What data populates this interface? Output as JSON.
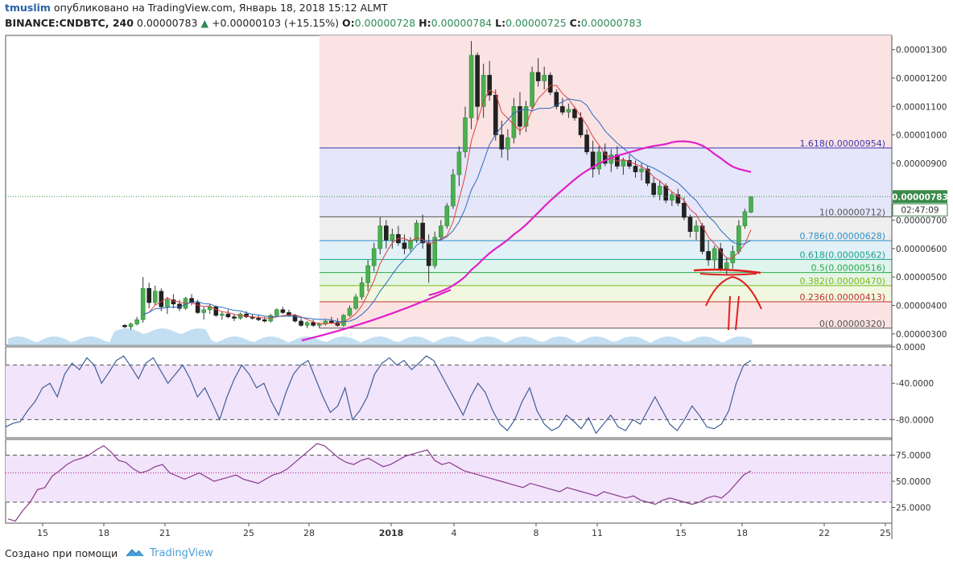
{
  "header": {
    "author": "tmuslim",
    "published_text": "опубликовано на TradingView.com, Январь 18, 2018 15:12 ALMT",
    "symbol": "BINANCE:CNDBTC, 240",
    "last": "0.00000783",
    "change": "+0.00000103 (+15.15%)",
    "open_label": "O:",
    "open": "0.00000728",
    "high_label": "H:",
    "high": "0.00000784",
    "low_label": "L:",
    "low": "0.00000725",
    "close_label": "C:",
    "close": "0.00000783"
  },
  "footer": {
    "created_text": "Создано при помощи",
    "brand": "TradingView"
  },
  "chart_data": [
    {
      "type": "candlestick",
      "panel": "price",
      "y_ticks": [
        "0.00001300",
        "0.00001200",
        "0.00001100",
        "0.00001000",
        "0.00000900",
        "0.00000700",
        "0.00000600",
        "0.00000500",
        "0.00000400",
        "0.00000300"
      ],
      "ylim": [
        2.6e-06,
        1.35e-05
      ],
      "last_price_label": "0.00000783",
      "countdown_label": "02:47:09",
      "fibonacci": [
        {
          "level": "1.618",
          "price": 9.54e-06,
          "label": "1.618(0.00000954)",
          "color": "#3a3ab0"
        },
        {
          "level": "1",
          "price": 7.12e-06,
          "label": "1(0.00000712)",
          "color": "#555555"
        },
        {
          "level": "0.786",
          "price": 6.28e-06,
          "label": "0.786(0.00000628)",
          "color": "#2a90c8"
        },
        {
          "level": "0.618",
          "price": 5.62e-06,
          "label": "0.618(0.00000562)",
          "color": "#1aa38a"
        },
        {
          "level": "0.5",
          "price": 5.16e-06,
          "label": "0.5(0.00000516)",
          "color": "#2aa84a"
        },
        {
          "level": "0.382",
          "price": 4.7e-06,
          "label": "0.382(0.00000470)",
          "color": "#7ab818"
        },
        {
          "level": "0.236",
          "price": 4.13e-06,
          "label": "0.236(0.00000413)",
          "color": "#c03030"
        },
        {
          "level": "0",
          "price": 3.2e-06,
          "label": "0(0.00000320)",
          "color": "#555555"
        }
      ],
      "candles_ohlc": [
        [
          3.3,
          3.35,
          3.2,
          3.25
        ],
        [
          3.25,
          3.4,
          3.15,
          3.35
        ],
        [
          3.35,
          3.6,
          3.3,
          3.5
        ],
        [
          3.5,
          5.0,
          3.4,
          4.6
        ],
        [
          4.6,
          4.8,
          3.9,
          4.1
        ],
        [
          4.1,
          4.7,
          4.0,
          4.5
        ],
        [
          4.5,
          4.6,
          3.8,
          3.95
        ],
        [
          3.95,
          4.3,
          3.7,
          4.2
        ],
        [
          4.2,
          4.4,
          3.9,
          4.05
        ],
        [
          4.05,
          4.2,
          3.8,
          3.9
        ],
        [
          3.9,
          4.3,
          3.85,
          4.25
        ],
        [
          4.25,
          4.4,
          4.0,
          4.1
        ],
        [
          4.1,
          4.2,
          3.7,
          3.75
        ],
        [
          3.75,
          3.95,
          3.5,
          3.85
        ],
        [
          3.85,
          4.05,
          3.7,
          3.95
        ],
        [
          3.95,
          4.0,
          3.6,
          3.65
        ],
        [
          3.65,
          3.8,
          3.5,
          3.7
        ],
        [
          3.7,
          3.85,
          3.55,
          3.6
        ],
        [
          3.6,
          3.7,
          3.45,
          3.55
        ],
        [
          3.55,
          3.75,
          3.5,
          3.7
        ],
        [
          3.7,
          3.8,
          3.55,
          3.6
        ],
        [
          3.6,
          3.7,
          3.5,
          3.55
        ],
        [
          3.55,
          3.65,
          3.45,
          3.5
        ],
        [
          3.5,
          3.6,
          3.4,
          3.45
        ],
        [
          3.45,
          3.7,
          3.4,
          3.65
        ],
        [
          3.65,
          3.9,
          3.6,
          3.85
        ],
        [
          3.85,
          3.95,
          3.7,
          3.75
        ],
        [
          3.75,
          3.85,
          3.6,
          3.65
        ],
        [
          3.65,
          3.7,
          3.4,
          3.45
        ],
        [
          3.45,
          3.55,
          3.25,
          3.3
        ],
        [
          3.3,
          3.45,
          3.2,
          3.4
        ],
        [
          3.4,
          3.5,
          3.25,
          3.3
        ],
        [
          3.3,
          3.4,
          3.2,
          3.35
        ],
        [
          3.35,
          3.5,
          3.3,
          3.45
        ],
        [
          3.45,
          3.6,
          3.35,
          3.4
        ],
        [
          3.4,
          3.55,
          3.25,
          3.3
        ],
        [
          3.3,
          3.7,
          3.25,
          3.65
        ],
        [
          3.65,
          4.0,
          3.6,
          3.9
        ],
        [
          3.9,
          4.4,
          3.85,
          4.3
        ],
        [
          4.3,
          5.0,
          4.2,
          4.8
        ],
        [
          4.8,
          5.6,
          4.5,
          5.4
        ],
        [
          5.4,
          6.2,
          5.2,
          6.0
        ],
        [
          6.0,
          7.1,
          5.8,
          6.8
        ],
        [
          6.8,
          7.0,
          6.0,
          6.3
        ],
        [
          6.3,
          6.7,
          6.0,
          6.5
        ],
        [
          6.5,
          6.8,
          6.1,
          6.2
        ],
        [
          6.2,
          6.5,
          5.8,
          6.0
        ],
        [
          6.0,
          6.4,
          5.9,
          6.3
        ],
        [
          6.3,
          7.0,
          6.2,
          6.9
        ],
        [
          6.9,
          7.2,
          6.0,
          6.2
        ],
        [
          6.2,
          6.5,
          4.8,
          5.4
        ],
        [
          5.4,
          6.6,
          5.3,
          6.4
        ],
        [
          6.4,
          7.0,
          6.3,
          6.8
        ],
        [
          6.8,
          7.6,
          6.7,
          7.5
        ],
        [
          7.5,
          8.8,
          7.4,
          8.6
        ],
        [
          8.6,
          9.6,
          8.2,
          9.4
        ],
        [
          9.4,
          11.0,
          9.2,
          10.6
        ],
        [
          10.6,
          13.3,
          10.2,
          12.8
        ],
        [
          12.8,
          12.9,
          10.5,
          11.0
        ],
        [
          11.0,
          12.5,
          10.6,
          12.1
        ],
        [
          12.1,
          12.6,
          11.2,
          11.4
        ],
        [
          11.4,
          11.6,
          9.8,
          10.0
        ],
        [
          10.0,
          10.5,
          9.2,
          9.5
        ],
        [
          9.5,
          10.2,
          9.1,
          9.9
        ],
        [
          9.9,
          11.3,
          9.7,
          11.0
        ],
        [
          11.0,
          11.5,
          10.0,
          10.3
        ],
        [
          10.3,
          11.2,
          10.1,
          11.0
        ],
        [
          11.0,
          12.4,
          10.9,
          12.2
        ],
        [
          12.2,
          12.7,
          11.7,
          11.9
        ],
        [
          11.9,
          12.4,
          11.6,
          12.1
        ],
        [
          12.1,
          12.2,
          11.4,
          11.5
        ],
        [
          11.5,
          11.6,
          10.9,
          11.0
        ],
        [
          11.0,
          11.3,
          10.7,
          10.8
        ],
        [
          10.8,
          11.1,
          10.6,
          10.9
        ],
        [
          10.9,
          11.0,
          10.5,
          10.6
        ],
        [
          10.6,
          10.8,
          9.9,
          10.0
        ],
        [
          10.0,
          10.2,
          9.3,
          9.4
        ],
        [
          9.4,
          9.8,
          8.5,
          8.8
        ],
        [
          8.8,
          9.6,
          8.6,
          9.4
        ],
        [
          9.4,
          9.7,
          8.9,
          9.0
        ],
        [
          9.0,
          9.5,
          8.7,
          9.3
        ],
        [
          9.3,
          9.6,
          8.8,
          8.9
        ],
        [
          8.9,
          9.2,
          8.6,
          9.1
        ],
        [
          9.1,
          9.3,
          8.8,
          8.9
        ],
        [
          8.9,
          9.1,
          8.5,
          8.7
        ],
        [
          8.7,
          9.0,
          8.4,
          8.8
        ],
        [
          8.8,
          8.9,
          8.2,
          8.3
        ],
        [
          8.3,
          8.5,
          7.8,
          7.9
        ],
        [
          7.9,
          8.4,
          7.7,
          8.2
        ],
        [
          8.2,
          8.3,
          7.6,
          7.7
        ],
        [
          7.7,
          8.0,
          7.5,
          7.9
        ],
        [
          7.9,
          8.1,
          7.5,
          7.6
        ],
        [
          7.6,
          7.8,
          7.0,
          7.1
        ],
        [
          7.1,
          7.2,
          6.4,
          6.6
        ],
        [
          6.6,
          7.0,
          6.3,
          6.8
        ],
        [
          6.8,
          6.9,
          5.8,
          5.9
        ],
        [
          5.9,
          6.3,
          5.4,
          5.6
        ],
        [
          5.6,
          6.1,
          5.3,
          6.0
        ],
        [
          6.0,
          6.2,
          5.2,
          5.3
        ],
        [
          5.3,
          5.7,
          5.1,
          5.5
        ],
        [
          5.5,
          6.1,
          5.3,
          5.9
        ],
        [
          5.9,
          7.0,
          5.8,
          6.8
        ],
        [
          6.8,
          7.4,
          6.7,
          7.3
        ],
        [
          7.28,
          7.84,
          7.25,
          7.83
        ]
      ],
      "moving_averages": [
        {
          "name": "MA fast",
          "color": "#e04040"
        },
        {
          "name": "MA medium",
          "color": "#2a6ac0"
        },
        {
          "name": "MA slow",
          "color": "#e020c8"
        }
      ],
      "x_ticks": [
        "15",
        "18",
        "21",
        "25",
        "28",
        "2018",
        "4",
        "8",
        "11",
        "15",
        "18",
        "22",
        "25"
      ]
    },
    {
      "type": "line",
      "panel": "oscillator1",
      "y_ticks": [
        "0.0000",
        "-40.0000",
        "-80.0000"
      ],
      "ylim": [
        -100,
        0
      ],
      "bands": [
        -20,
        -80
      ],
      "series": [
        {
          "values": [
            -88,
            -84,
            -82,
            -70,
            -60,
            -45,
            -40,
            -55,
            -30,
            -18,
            -25,
            -12,
            -20,
            -40,
            -28,
            -15,
            -10,
            -22,
            -35,
            -18,
            -12,
            -26,
            -40,
            -30,
            -20,
            -35,
            -55,
            -45,
            -62,
            -80,
            -55,
            -35,
            -20,
            -30,
            -45,
            -40,
            -60,
            -75,
            -50,
            -30,
            -20,
            -15,
            -35,
            -55,
            -72,
            -65,
            -45,
            -80,
            -70,
            -55,
            -30,
            -18,
            -12,
            -20,
            -15,
            -25,
            -18,
            -10,
            -15,
            -30,
            -45,
            -60,
            -75,
            -55,
            -40,
            -50,
            -70,
            -85,
            -92,
            -80,
            -60,
            -45,
            -70,
            -85,
            -92,
            -88,
            -75,
            -82,
            -90,
            -78,
            -95,
            -85,
            -75,
            -88,
            -92,
            -80,
            -85,
            -70,
            -55,
            -70,
            -85,
            -92,
            -80,
            -65,
            -75,
            -88,
            -90,
            -85,
            -70,
            -40,
            -20,
            -15
          ]
        }
      ]
    },
    {
      "type": "line",
      "panel": "rsi",
      "y_ticks": [
        "75.0000",
        "50.0000",
        "25.0000"
      ],
      "ylim": [
        10,
        90
      ],
      "bands": [
        75,
        30
      ],
      "midline": 58,
      "series": [
        {
          "values": [
            14,
            12,
            22,
            30,
            42,
            44,
            55,
            60,
            66,
            70,
            72,
            75,
            80,
            84,
            78,
            70,
            68,
            62,
            58,
            60,
            64,
            66,
            58,
            55,
            52,
            55,
            58,
            54,
            50,
            52,
            54,
            56,
            52,
            50,
            48,
            52,
            56,
            58,
            62,
            68,
            74,
            80,
            86,
            84,
            78,
            72,
            68,
            66,
            70,
            72,
            68,
            64,
            66,
            70,
            74,
            76,
            78,
            80,
            70,
            66,
            68,
            64,
            60,
            58,
            56,
            54,
            52,
            50,
            48,
            46,
            44,
            48,
            46,
            44,
            42,
            40,
            44,
            42,
            40,
            38,
            36,
            40,
            38,
            36,
            34,
            36,
            32,
            30,
            28,
            32,
            34,
            32,
            30,
            28,
            30,
            34,
            36,
            34,
            40,
            48,
            56,
            60
          ]
        }
      ]
    }
  ],
  "annotations": {
    "drawing_color": "#e02020",
    "note": ""
  }
}
